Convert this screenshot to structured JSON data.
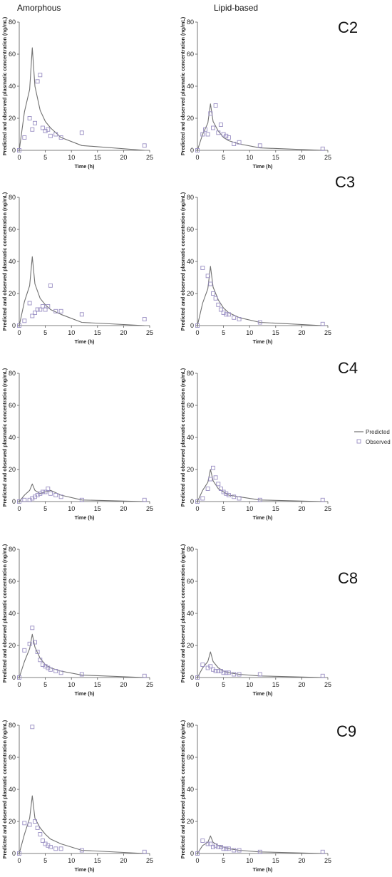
{
  "columns": [
    "Amorphous",
    "Lipid-based"
  ],
  "rows": [
    "C2",
    "C3",
    "C4",
    "C8",
    "C9"
  ],
  "legend": {
    "predicted": "Predicted",
    "observed": "Observed"
  },
  "colors": {
    "predicted": "#707070",
    "observed": "#9a8fc4",
    "axis": "#555555"
  },
  "chart_data": [
    {
      "type": "line",
      "row": "C2",
      "column": "Amorphous",
      "xlabel": "Time (h)",
      "ylabel": "Predicted and observed plasmatic concentration (ng/mL)",
      "xlim": [
        0,
        25
      ],
      "ylim": [
        0,
        80
      ],
      "xticks": [
        0,
        5,
        10,
        15,
        20,
        25
      ],
      "yticks": [
        0,
        20,
        40,
        60,
        80
      ],
      "series": [
        {
          "name": "Predicted",
          "x": [
            0,
            1,
            2,
            2.5,
            3,
            4,
            5,
            6,
            8,
            12,
            24
          ],
          "y": [
            0,
            24,
            38,
            64,
            40,
            25,
            18,
            14,
            8,
            3,
            0
          ]
        },
        {
          "name": "Observed",
          "x": [
            0,
            1,
            2,
            2.5,
            3,
            3.5,
            4,
            4.5,
            5,
            5.5,
            6,
            7,
            8,
            12,
            24
          ],
          "y": [
            0,
            8,
            20,
            13,
            17,
            43,
            47,
            14,
            12,
            13,
            9,
            10,
            8,
            11,
            3
          ]
        }
      ]
    },
    {
      "type": "line",
      "row": "C2",
      "column": "Lipid-based",
      "xlabel": "Time (h)",
      "ylabel": "Predicted and observed plasmatic concentration (ng/mL)",
      "xlim": [
        0,
        25
      ],
      "ylim": [
        0,
        80
      ],
      "xticks": [
        0,
        5,
        10,
        15,
        20,
        25
      ],
      "yticks": [
        0,
        20,
        40,
        60,
        80
      ],
      "series": [
        {
          "name": "Predicted",
          "x": [
            0,
            1,
            2,
            2.5,
            3,
            4,
            5,
            6,
            8,
            12,
            24
          ],
          "y": [
            0,
            10,
            17,
            29,
            18,
            12,
            8,
            6,
            4,
            1.5,
            0
          ]
        },
        {
          "name": "Observed",
          "x": [
            0,
            1,
            1.5,
            2,
            2.5,
            3,
            3.5,
            4,
            4.5,
            5,
            5.5,
            6,
            7,
            8,
            12,
            24
          ],
          "y": [
            0,
            10,
            13,
            10,
            23,
            14,
            28,
            11,
            16,
            10,
            9,
            8,
            4,
            5,
            3,
            1
          ]
        }
      ]
    },
    {
      "type": "line",
      "row": "C3",
      "column": "Amorphous",
      "xlabel": "Time (h)",
      "ylabel": "Predicted and observed plasmatic concentration (ng/mL)",
      "xlim": [
        0,
        25
      ],
      "ylim": [
        0,
        80
      ],
      "xticks": [
        0,
        5,
        10,
        15,
        20,
        25
      ],
      "yticks": [
        0,
        20,
        40,
        60,
        80
      ],
      "series": [
        {
          "name": "Predicted",
          "x": [
            0,
            1,
            2,
            2.5,
            3,
            4,
            5,
            6,
            8,
            12,
            24
          ],
          "y": [
            0,
            15,
            25,
            43,
            26,
            17,
            13,
            10,
            7,
            2,
            0
          ]
        },
        {
          "name": "Observed",
          "x": [
            0,
            1,
            2,
            2.5,
            3,
            3.5,
            4,
            4.5,
            5,
            5.5,
            6,
            7,
            8,
            12,
            24
          ],
          "y": [
            0,
            3,
            14,
            6,
            8,
            10,
            10,
            12,
            10,
            12,
            25,
            9,
            9,
            7,
            4
          ]
        }
      ]
    },
    {
      "type": "line",
      "row": "C3",
      "column": "Lipid-based",
      "xlabel": "Time (h)",
      "ylabel": "Predicted and observed plasmatic concentration (ng/mL)",
      "xlim": [
        0,
        25
      ],
      "ylim": [
        0,
        80
      ],
      "xticks": [
        0,
        5,
        10,
        15,
        20,
        25
      ],
      "yticks": [
        0,
        20,
        40,
        60,
        80
      ],
      "series": [
        {
          "name": "Predicted",
          "x": [
            0,
            1,
            2,
            2.5,
            3,
            4,
            5,
            6,
            8,
            12,
            24
          ],
          "y": [
            0,
            14,
            23,
            37,
            24,
            16,
            11,
            8,
            5,
            2,
            0
          ]
        },
        {
          "name": "Observed",
          "x": [
            0,
            1,
            2,
            2.5,
            3,
            3.5,
            4,
            4.5,
            5,
            5.5,
            6,
            7,
            8,
            12,
            24
          ],
          "y": [
            0,
            36,
            31,
            26,
            20,
            17,
            13,
            10,
            8,
            7,
            7,
            5,
            4,
            2,
            1
          ]
        }
      ]
    },
    {
      "type": "line",
      "row": "C4",
      "column": "Amorphous",
      "xlabel": "Time (h)",
      "ylabel": "Predicted and observed plasmatic concentration (ng/mL)",
      "xlim": [
        0,
        25
      ],
      "ylim": [
        0,
        80
      ],
      "xticks": [
        0,
        5,
        10,
        15,
        20,
        25
      ],
      "yticks": [
        0,
        20,
        40,
        60,
        80
      ],
      "series": [
        {
          "name": "Predicted",
          "x": [
            0,
            1,
            2,
            2.5,
            3,
            4,
            5,
            6,
            8,
            12,
            24
          ],
          "y": [
            0,
            4,
            7,
            11,
            7,
            5,
            6,
            7,
            4,
            1,
            0
          ]
        },
        {
          "name": "Observed",
          "x": [
            0,
            1,
            2,
            2.5,
            3,
            3.5,
            4,
            4.5,
            5,
            5.5,
            6,
            7,
            8,
            12,
            24
          ],
          "y": [
            0,
            1,
            1,
            2,
            3,
            4,
            5,
            6,
            6,
            8,
            5,
            4,
            3,
            1,
            1
          ]
        }
      ]
    },
    {
      "type": "line",
      "row": "C4",
      "column": "Lipid-based",
      "xlabel": "Time (h)",
      "ylabel": "Predicted and observed plasmatic concentration (ng/mL)",
      "xlim": [
        0,
        25
      ],
      "ylim": [
        0,
        80
      ],
      "xticks": [
        0,
        5,
        10,
        15,
        20,
        25
      ],
      "yticks": [
        0,
        20,
        40,
        60,
        80
      ],
      "series": [
        {
          "name": "Predicted",
          "x": [
            0,
            1,
            2,
            2.5,
            3,
            4,
            5,
            6,
            8,
            12,
            24
          ],
          "y": [
            0,
            7,
            12,
            20,
            13,
            8,
            6,
            4,
            3,
            1,
            0
          ]
        },
        {
          "name": "Observed",
          "x": [
            0,
            1,
            2,
            2.5,
            3,
            3.5,
            4,
            4.5,
            5,
            5.5,
            6,
            7,
            8,
            12,
            24
          ],
          "y": [
            0,
            2,
            8,
            14,
            21,
            15,
            11,
            8,
            6,
            5,
            4,
            3,
            2,
            1,
            1
          ]
        }
      ]
    },
    {
      "type": "line",
      "row": "C8",
      "column": "Amorphous",
      "xlabel": "Time (h)",
      "ylabel": "Predicted and observed plasmatic concentration (ng/mL)",
      "xlim": [
        0,
        25
      ],
      "ylim": [
        0,
        80
      ],
      "xticks": [
        0,
        5,
        10,
        15,
        20,
        25
      ],
      "yticks": [
        0,
        20,
        40,
        60,
        80
      ],
      "series": [
        {
          "name": "Predicted",
          "x": [
            0,
            1,
            2,
            2.5,
            3,
            4,
            5,
            6,
            8,
            12,
            24
          ],
          "y": [
            0,
            10,
            18,
            27,
            19,
            12,
            8,
            6,
            4,
            1.5,
            0
          ]
        },
        {
          "name": "Observed",
          "x": [
            0,
            1,
            2,
            2.5,
            3,
            3.5,
            4,
            4.5,
            5,
            5.5,
            6,
            7,
            8,
            12,
            24
          ],
          "y": [
            0,
            17,
            21,
            31,
            22,
            16,
            11,
            8,
            7,
            6,
            5,
            4,
            3,
            2,
            1
          ]
        }
      ]
    },
    {
      "type": "line",
      "row": "C8",
      "column": "Lipid-based",
      "xlabel": "Time (h)",
      "ylabel": "Predicted and observed plasmatic concentration (ng/mL)",
      "xlim": [
        0,
        25
      ],
      "ylim": [
        0,
        80
      ],
      "xticks": [
        0,
        5,
        10,
        15,
        20,
        25
      ],
      "yticks": [
        0,
        20,
        40,
        60,
        80
      ],
      "series": [
        {
          "name": "Predicted",
          "x": [
            0,
            1,
            2,
            2.5,
            3,
            4,
            5,
            6,
            8,
            12,
            24
          ],
          "y": [
            0,
            6,
            10,
            16,
            10,
            6,
            4,
            3,
            2,
            1,
            0
          ]
        },
        {
          "name": "Observed",
          "x": [
            0,
            1,
            2,
            2.5,
            3,
            3.5,
            4,
            4.5,
            5,
            5.5,
            6,
            7,
            8,
            12,
            24
          ],
          "y": [
            0,
            8,
            6,
            7,
            5,
            4,
            4,
            4,
            3,
            3,
            3,
            2,
            2,
            2,
            1
          ]
        }
      ]
    },
    {
      "type": "line",
      "row": "C9",
      "column": "Amorphous",
      "xlabel": "Time (h)",
      "ylabel": "Predicted and observed plasmatic concentration (ng/mL)",
      "xlim": [
        0,
        25
      ],
      "ylim": [
        0,
        80
      ],
      "xticks": [
        0,
        5,
        10,
        15,
        20,
        25
      ],
      "yticks": [
        0,
        20,
        40,
        60,
        80
      ],
      "series": [
        {
          "name": "Predicted",
          "x": [
            0,
            1,
            2,
            2.5,
            3,
            4,
            5,
            6,
            8,
            12,
            24
          ],
          "y": [
            0,
            12,
            22,
            36,
            22,
            16,
            12,
            9,
            6,
            2,
            0
          ]
        },
        {
          "name": "Observed",
          "x": [
            0,
            1,
            2,
            2.5,
            3,
            3.5,
            4,
            4.5,
            5,
            5.5,
            6,
            7,
            8,
            12,
            24
          ],
          "y": [
            0,
            19,
            18,
            79,
            20,
            16,
            12,
            8,
            6,
            5,
            4,
            3,
            3,
            2,
            1
          ]
        }
      ]
    },
    {
      "type": "line",
      "row": "C9",
      "column": "Lipid-based",
      "xlabel": "Time (h)",
      "ylabel": "Predicted and observed plasmatic concentration (ng/mL)",
      "xlim": [
        0,
        25
      ],
      "ylim": [
        0,
        80
      ],
      "xticks": [
        0,
        5,
        10,
        15,
        20,
        25
      ],
      "yticks": [
        0,
        20,
        40,
        60,
        80
      ],
      "series": [
        {
          "name": "Predicted",
          "x": [
            0,
            1,
            2,
            2.5,
            3,
            4,
            5,
            6,
            8,
            12,
            24
          ],
          "y": [
            0,
            5,
            7,
            11,
            7,
            5,
            4,
            3,
            2,
            1,
            0
          ]
        },
        {
          "name": "Observed",
          "x": [
            0,
            1,
            2,
            2.5,
            3,
            3.5,
            4,
            4.5,
            5,
            5.5,
            6,
            7,
            8,
            12,
            24
          ],
          "y": [
            0,
            8,
            6,
            6,
            4,
            5,
            4,
            4,
            3,
            3,
            3,
            2,
            2,
            1,
            1
          ]
        }
      ]
    }
  ]
}
